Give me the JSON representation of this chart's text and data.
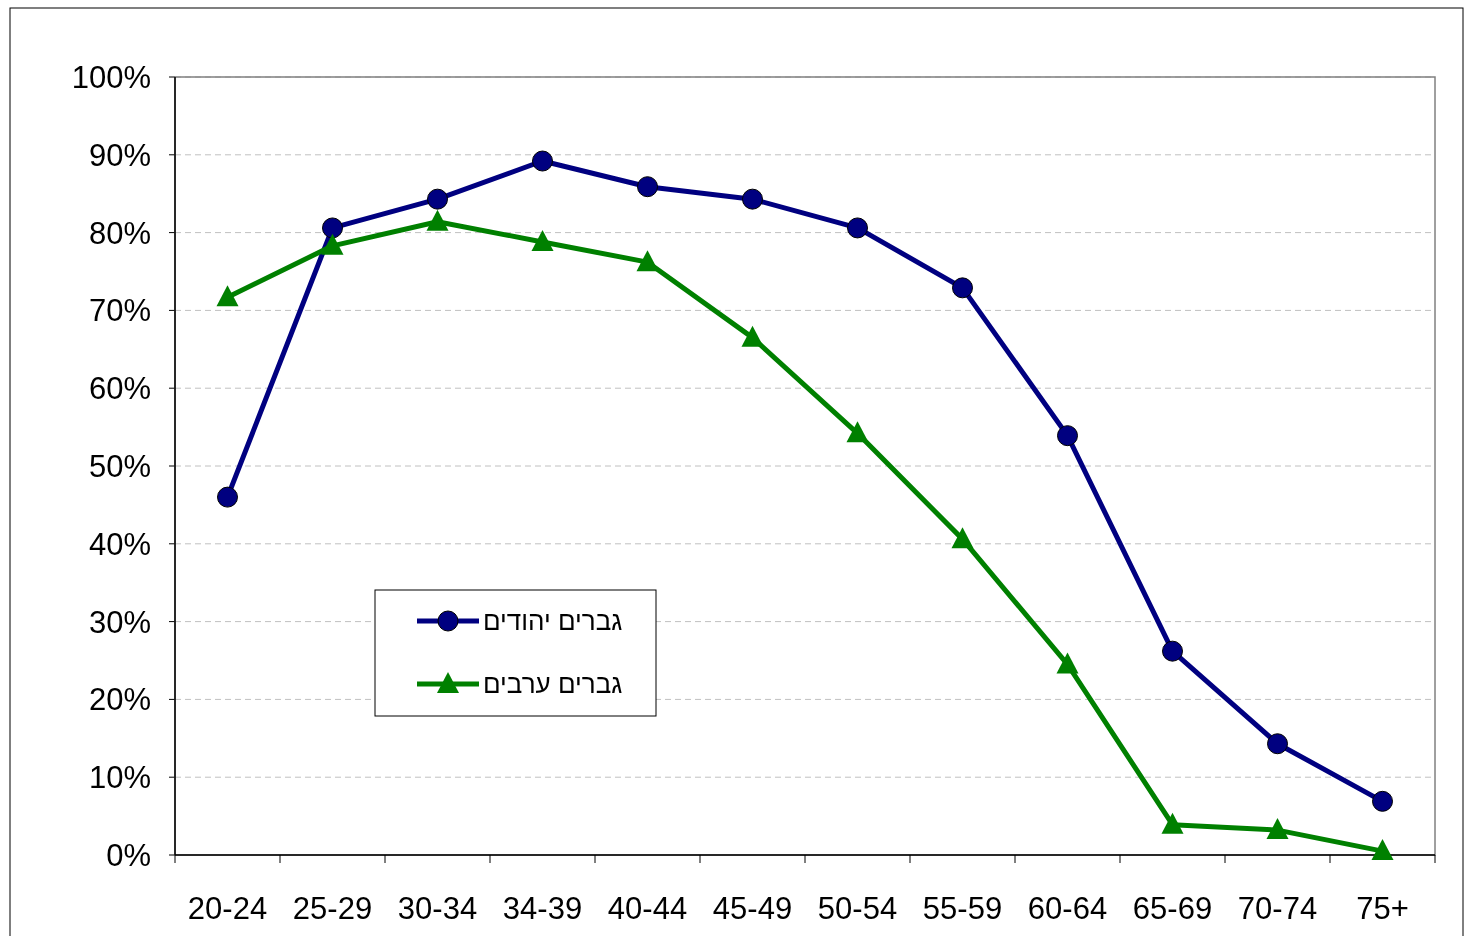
{
  "chart_data": {
    "type": "line",
    "categories": [
      "20-24",
      "25-29",
      "30-34",
      "34-39",
      "40-44",
      "45-49",
      "50-54",
      "55-59",
      "60-64",
      "65-69",
      "70-74",
      "75+"
    ],
    "series": [
      {
        "name": "גברים יהודים",
        "color": "#000080",
        "marker": "circle",
        "values": [
          46.0,
          80.6,
          84.3,
          89.2,
          85.9,
          84.3,
          80.6,
          72.9,
          53.9,
          26.2,
          14.3,
          6.9
        ]
      },
      {
        "name": "גברים ערבים",
        "color": "#008000",
        "marker": "triangle",
        "values": [
          71.7,
          78.3,
          81.4,
          78.8,
          76.2,
          66.5,
          54.2,
          40.6,
          24.5,
          3.9,
          3.2,
          0.5
        ]
      }
    ],
    "ylim": [
      0,
      100
    ],
    "yticks": [
      {
        "value": 0,
        "label": "0%"
      },
      {
        "value": 10,
        "label": "10%"
      },
      {
        "value": 20,
        "label": "20%"
      },
      {
        "value": 30,
        "label": "30%"
      },
      {
        "value": 40,
        "label": "40%"
      },
      {
        "value": 50,
        "label": "50%"
      },
      {
        "value": 60,
        "label": "60%"
      },
      {
        "value": 70,
        "label": "70%"
      },
      {
        "value": 80,
        "label": "80%"
      },
      {
        "value": 90,
        "label": "90%"
      },
      {
        "value": 100,
        "label": "100%"
      }
    ],
    "grid": "y",
    "legend": "bottom left",
    "line_style": "solid"
  }
}
